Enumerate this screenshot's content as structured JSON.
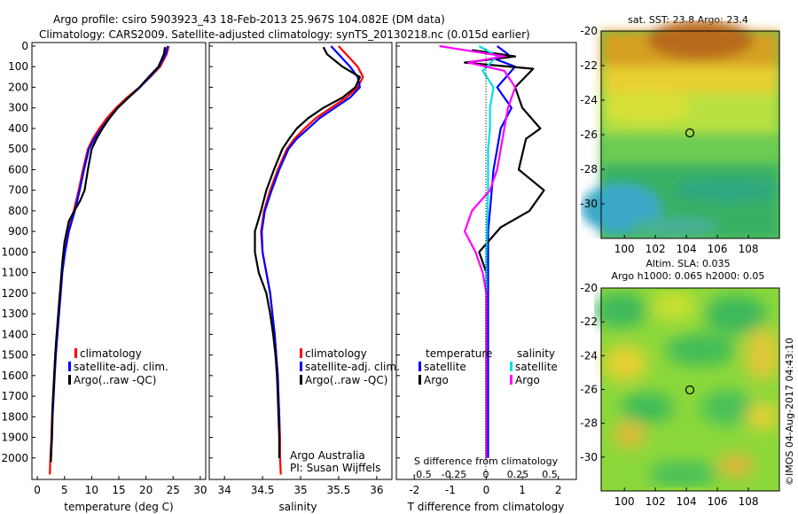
{
  "header": {
    "line1": "Argo profile: csiro 5903923_43 18-Feb-2013 25.967S 104.082E (DM data)",
    "line2": "Climatology: CARS2009. Satellite-adjusted climatology: synTS_20130218.nc (0.015d earlier)"
  },
  "colors": {
    "climatology": "#ff0000",
    "satellite": "#0000ff",
    "argo": "#000000",
    "salinity_satellite": "#00e0e0",
    "salinity_argo": "#ff00ff"
  },
  "side_text": "©IMOS 04-Aug-2017 04:43:10",
  "chart_data": [
    {
      "type": "line",
      "id": "temperature",
      "xlabel": "temperature (deg C)",
      "ylabel": "",
      "xlim": [
        -1,
        31
      ],
      "ylim": [
        2100,
        0
      ],
      "xticks": [
        "0",
        "5",
        "10",
        "15",
        "20",
        "25",
        "30"
      ],
      "yticks": [
        "0",
        "100",
        "200",
        "300",
        "400",
        "500",
        "600",
        "700",
        "800",
        "900",
        "1000",
        "1100",
        "1200",
        "1300",
        "1400",
        "1500",
        "1600",
        "1700",
        "1800",
        "1900",
        "2000"
      ],
      "legend": [
        "climatology",
        "satellite-adj. clim.",
        "Argo(..raw -QC)"
      ],
      "series": [
        {
          "name": "climatology",
          "color": "#ff0000",
          "points": [
            [
              24.2,
              0
            ],
            [
              23.8,
              40
            ],
            [
              22.6,
              100
            ],
            [
              20.8,
              150
            ],
            [
              18.8,
              200
            ],
            [
              16.5,
              250
            ],
            [
              14.5,
              300
            ],
            [
              12.8,
              350
            ],
            [
              11.4,
              400
            ],
            [
              10.2,
              450
            ],
            [
              9.3,
              500
            ],
            [
              8.4,
              600
            ],
            [
              7.6,
              700
            ],
            [
              6.7,
              800
            ],
            [
              5.7,
              900
            ],
            [
              5.0,
              1000
            ],
            [
              4.5,
              1100
            ],
            [
              4.2,
              1200
            ],
            [
              3.9,
              1300
            ],
            [
              3.6,
              1400
            ],
            [
              3.3,
              1500
            ],
            [
              3.1,
              1600
            ],
            [
              2.9,
              1700
            ],
            [
              2.7,
              1800
            ],
            [
              2.6,
              1900
            ],
            [
              2.4,
              2000
            ],
            [
              2.3,
              2080
            ]
          ]
        },
        {
          "name": "satellite-adj. clim.",
          "color": "#0000ff",
          "points": [
            [
              24.0,
              0
            ],
            [
              23.6,
              40
            ],
            [
              22.4,
              100
            ],
            [
              20.7,
              150
            ],
            [
              18.9,
              200
            ],
            [
              16.8,
              250
            ],
            [
              14.8,
              300
            ],
            [
              13.2,
              350
            ],
            [
              11.8,
              400
            ],
            [
              10.5,
              450
            ],
            [
              9.5,
              500
            ],
            [
              8.6,
              600
            ],
            [
              7.8,
              700
            ],
            [
              6.9,
              800
            ],
            [
              5.8,
              900
            ],
            [
              5.1,
              1000
            ],
            [
              4.6,
              1100
            ],
            [
              4.3,
              1200
            ],
            [
              4.0,
              1300
            ],
            [
              3.7,
              1400
            ],
            [
              3.4,
              1500
            ],
            [
              3.2,
              1600
            ],
            [
              3.0,
              1700
            ],
            [
              2.8,
              1800
            ],
            [
              2.7,
              1900
            ],
            [
              2.5,
              2000
            ]
          ]
        },
        {
          "name": "Argo(..raw -QC)",
          "color": "#000000",
          "points": [
            [
              23.5,
              5
            ],
            [
              23.3,
              40
            ],
            [
              22.3,
              100
            ],
            [
              20.5,
              150
            ],
            [
              18.8,
              200
            ],
            [
              16.8,
              250
            ],
            [
              14.8,
              300
            ],
            [
              13.3,
              350
            ],
            [
              12.0,
              400
            ],
            [
              10.9,
              450
            ],
            [
              10.0,
              500
            ],
            [
              9.3,
              600
            ],
            [
              8.7,
              700
            ],
            [
              7.9,
              750
            ],
            [
              6.8,
              800
            ],
            [
              5.8,
              850
            ],
            [
              5.0,
              950
            ],
            [
              4.6,
              1050
            ],
            [
              4.3,
              1150
            ],
            [
              4.0,
              1250
            ],
            [
              3.7,
              1350
            ],
            [
              3.4,
              1450
            ],
            [
              3.2,
              1550
            ],
            [
              3.0,
              1650
            ],
            [
              2.8,
              1750
            ],
            [
              2.7,
              1850
            ],
            [
              2.6,
              1950
            ],
            [
              2.5,
              2020
            ]
          ]
        }
      ]
    },
    {
      "type": "line",
      "id": "salinity",
      "xlabel": "salinity",
      "xlim": [
        33.8,
        36.2
      ],
      "ylim": [
        2100,
        0
      ],
      "xticks": [
        "34",
        "34.5",
        "35",
        "35.5",
        "36"
      ],
      "legend": [
        "climatology",
        "satellite-adj. clim.",
        "Argo(..raw -QC)"
      ],
      "annotation": [
        "Argo Australia",
        "PI: Susan Wijffels"
      ],
      "series": [
        {
          "name": "climatology",
          "color": "#ff0000",
          "points": [
            [
              35.5,
              0
            ],
            [
              35.6,
              40
            ],
            [
              35.75,
              100
            ],
            [
              35.82,
              150
            ],
            [
              35.75,
              200
            ],
            [
              35.6,
              250
            ],
            [
              35.4,
              300
            ],
            [
              35.2,
              350
            ],
            [
              35.05,
              400
            ],
            [
              34.92,
              450
            ],
            [
              34.82,
              500
            ],
            [
              34.7,
              600
            ],
            [
              34.6,
              700
            ],
            [
              34.52,
              800
            ],
            [
              34.48,
              900
            ],
            [
              34.5,
              1000
            ],
            [
              34.55,
              1100
            ],
            [
              34.6,
              1200
            ],
            [
              34.63,
              1300
            ],
            [
              34.66,
              1400
            ],
            [
              34.68,
              1500
            ],
            [
              34.7,
              1600
            ],
            [
              34.71,
              1700
            ],
            [
              34.72,
              1800
            ],
            [
              34.73,
              1900
            ],
            [
              34.73,
              2000
            ],
            [
              34.74,
              2080
            ]
          ]
        },
        {
          "name": "satellite-adj. clim.",
          "color": "#0000ff",
          "points": [
            [
              35.4,
              0
            ],
            [
              35.5,
              40
            ],
            [
              35.65,
              100
            ],
            [
              35.75,
              150
            ],
            [
              35.78,
              200
            ],
            [
              35.65,
              250
            ],
            [
              35.45,
              300
            ],
            [
              35.25,
              350
            ],
            [
              35.1,
              400
            ],
            [
              34.95,
              450
            ],
            [
              34.84,
              500
            ],
            [
              34.72,
              600
            ],
            [
              34.62,
              700
            ],
            [
              34.53,
              800
            ],
            [
              34.49,
              900
            ],
            [
              34.5,
              1000
            ],
            [
              34.55,
              1100
            ],
            [
              34.6,
              1200
            ],
            [
              34.63,
              1300
            ],
            [
              34.66,
              1400
            ],
            [
              34.68,
              1500
            ],
            [
              34.7,
              1600
            ],
            [
              34.71,
              1700
            ],
            [
              34.72,
              1800
            ],
            [
              34.72,
              1900
            ],
            [
              34.72,
              2000
            ]
          ]
        },
        {
          "name": "Argo(..raw -QC)",
          "color": "#000000",
          "points": [
            [
              35.3,
              5
            ],
            [
              35.35,
              40
            ],
            [
              35.55,
              100
            ],
            [
              35.78,
              150
            ],
            [
              35.72,
              200
            ],
            [
              35.55,
              250
            ],
            [
              35.3,
              300
            ],
            [
              35.1,
              350
            ],
            [
              34.95,
              400
            ],
            [
              34.85,
              450
            ],
            [
              34.76,
              500
            ],
            [
              34.65,
              600
            ],
            [
              34.55,
              700
            ],
            [
              34.48,
              800
            ],
            [
              34.4,
              900
            ],
            [
              34.4,
              1000
            ],
            [
              34.45,
              1100
            ],
            [
              34.55,
              1200
            ],
            [
              34.6,
              1300
            ],
            [
              34.64,
              1400
            ],
            [
              34.67,
              1500
            ],
            [
              34.69,
              1600
            ],
            [
              34.7,
              1700
            ],
            [
              34.71,
              1800
            ],
            [
              34.72,
              1900
            ],
            [
              34.72,
              2000
            ]
          ]
        }
      ]
    },
    {
      "type": "line",
      "id": "difference",
      "xlabel": "T difference from climatology",
      "xlabel_top": "S difference from climatology",
      "xlim": [
        -2.5,
        2.5
      ],
      "ylim": [
        2100,
        0
      ],
      "xticks": [
        "-2",
        "-1",
        "0",
        "1",
        "2"
      ],
      "xticks_top": [
        "-0.5",
        "-0.25",
        "0",
        "0.25",
        "0.5"
      ],
      "legend_left_title": "temperature",
      "legend_right_title": "salinity",
      "legend": [
        "satellite",
        "Argo",
        "satellite",
        "Argo"
      ],
      "series": [
        {
          "name": "satellite",
          "color": "#0000ff",
          "points": [
            [
              0.3,
              0
            ],
            [
              0.6,
              40
            ],
            [
              0.2,
              60
            ],
            [
              0.8,
              100
            ],
            [
              0.3,
              200
            ],
            [
              0.7,
              300
            ],
            [
              0.4,
              400
            ],
            [
              0.3,
              500
            ],
            [
              0.2,
              600
            ],
            [
              0.15,
              700
            ],
            [
              0.1,
              800
            ],
            [
              0.05,
              900
            ],
            [
              0.05,
              1000
            ],
            [
              0.05,
              1200
            ],
            [
              0.05,
              1500
            ],
            [
              0.05,
              2000
            ]
          ]
        },
        {
          "name": "Argo",
          "color": "#000000",
          "points": [
            [
              -0.4,
              20
            ],
            [
              0.8,
              50
            ],
            [
              -0.6,
              80
            ],
            [
              1.3,
              110
            ],
            [
              0.8,
              200
            ],
            [
              1.0,
              300
            ],
            [
              1.5,
              400
            ],
            [
              1.1,
              450
            ],
            [
              0.9,
              600
            ],
            [
              1.6,
              700
            ],
            [
              1.2,
              800
            ],
            [
              0.4,
              880
            ],
            [
              -0.2,
              1000
            ],
            [
              0,
              1100
            ],
            [
              0,
              1300
            ],
            [
              0,
              1500
            ],
            [
              0,
              2000
            ]
          ]
        },
        {
          "name": "satellite",
          "color": "#00e0e0",
          "points": [
            [
              -0.2,
              0
            ],
            [
              0.3,
              50
            ],
            [
              -0.1,
              120
            ],
            [
              0.2,
              200
            ],
            [
              0.1,
              300
            ],
            [
              0.1,
              400
            ],
            [
              0.05,
              500
            ],
            [
              0.05,
              700
            ],
            [
              0.0,
              1000
            ],
            [
              0.0,
              1500
            ],
            [
              0.0,
              2000
            ]
          ]
        },
        {
          "name": "Argo",
          "color": "#ff00ff",
          "points": [
            [
              -1.3,
              0
            ],
            [
              0.5,
              50
            ],
            [
              -0.5,
              80
            ],
            [
              0.5,
              120
            ],
            [
              0.8,
              200
            ],
            [
              0.6,
              300
            ],
            [
              0.5,
              400
            ],
            [
              0.3,
              600
            ],
            [
              0.1,
              700
            ],
            [
              -0.4,
              800
            ],
            [
              -0.6,
              900
            ],
            [
              -0.3,
              1000
            ],
            [
              -0.1,
              1100
            ],
            [
              0,
              1200
            ],
            [
              0,
              1500
            ],
            [
              0,
              2000
            ]
          ]
        }
      ]
    },
    {
      "type": "heatmap",
      "id": "sst_map",
      "title": "sat. SST: 23.8 Argo: 23.4",
      "xlim": [
        98.5,
        110
      ],
      "ylim": [
        -32,
        -20
      ],
      "xticks": [
        "100",
        "102",
        "104",
        "106",
        "108"
      ],
      "yticks": [
        "-20",
        "-22",
        "-24",
        "-26",
        "-28",
        "-30"
      ],
      "marker": [
        104.082,
        -25.967
      ]
    },
    {
      "type": "heatmap",
      "id": "sla_map",
      "title": "Altim. SLA: 0.035",
      "subtitle": "Argo h1000: 0.065 h2000: 0.05",
      "xlim": [
        98.5,
        110
      ],
      "ylim": [
        -32,
        -20
      ],
      "xticks": [
        "100",
        "102",
        "104",
        "106",
        "108"
      ],
      "yticks": [
        "-20",
        "-22",
        "-24",
        "-26",
        "-28",
        "-30"
      ],
      "marker": [
        104.082,
        -25.967
      ]
    }
  ]
}
